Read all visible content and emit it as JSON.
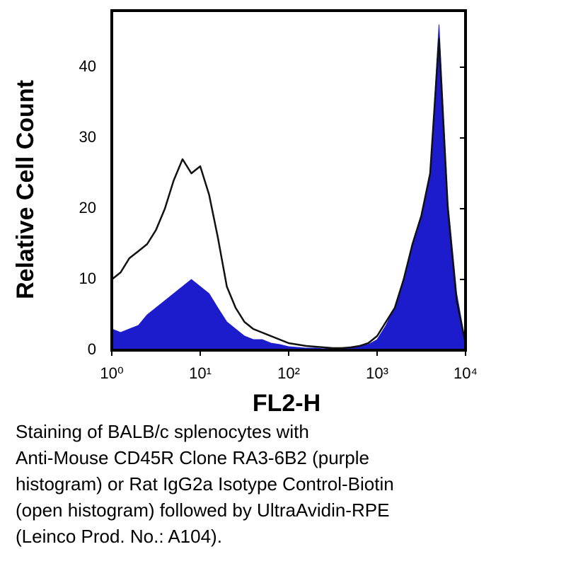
{
  "chart_data": {
    "type": "histogram-overlay",
    "x_label": "FL2-H",
    "y_label": "Relative Cell Count",
    "caption": [
      "Staining of BALB/c splenocytes with",
      "Anti-Mouse CD45R Clone RA3-6B2 (purple",
      "histogram) or Rat IgG2a Isotype Control-Biotin",
      "(open histogram) followed by UltraAvidin-RPE",
      "(Leinco Prod. No.: A104)."
    ],
    "x_log": true,
    "xlim": [
      1,
      10000
    ],
    "xticks": [
      {
        "value": 1,
        "label": "10⁰"
      },
      {
        "value": 10,
        "label": "10¹"
      },
      {
        "value": 100,
        "label": "10²"
      },
      {
        "value": 1000,
        "label": "10³"
      },
      {
        "value": 10000,
        "label": "10⁴"
      }
    ],
    "ylim": [
      0,
      48
    ],
    "yticks": [
      0,
      10,
      20,
      30,
      40
    ],
    "grid": false,
    "x": [
      1,
      1.26,
      1.58,
      2,
      2.51,
      3.16,
      3.98,
      5.01,
      6.31,
      7.94,
      10,
      12.6,
      15.8,
      20,
      25.1,
      31.6,
      39.8,
      50.1,
      63.1,
      79.4,
      100,
      126,
      158,
      200,
      251,
      316,
      398,
      501,
      631,
      794,
      1000,
      1259,
      1585,
      1995,
      2512,
      3162,
      3981,
      5012,
      6310,
      7943,
      10000
    ],
    "series": [
      {
        "color": "#1c1ccc",
        "fill": true,
        "values": [
          3,
          2.5,
          3,
          3.5,
          5,
          6,
          7,
          8,
          9,
          10,
          9,
          8,
          6,
          4,
          3,
          2,
          1.5,
          1.5,
          1,
          0.8,
          0.5,
          0.4,
          0.3,
          0.3,
          0.2,
          0.2,
          0.2,
          0.3,
          0.5,
          0.8,
          1.5,
          3.5,
          6,
          10,
          15,
          19,
          25,
          46,
          21,
          8,
          1
        ]
      },
      {
        "color": "#111111",
        "fill": false,
        "values": [
          10,
          11,
          13,
          14,
          15,
          17,
          20,
          24,
          27,
          25,
          26,
          22,
          16,
          9,
          6,
          4,
          3,
          2.5,
          2,
          1.5,
          1,
          0.8,
          0.6,
          0.5,
          0.4,
          0.3,
          0.3,
          0.4,
          0.6,
          1,
          2,
          4,
          6,
          10,
          15,
          19,
          25,
          44,
          20,
          7,
          1
        ]
      }
    ]
  }
}
